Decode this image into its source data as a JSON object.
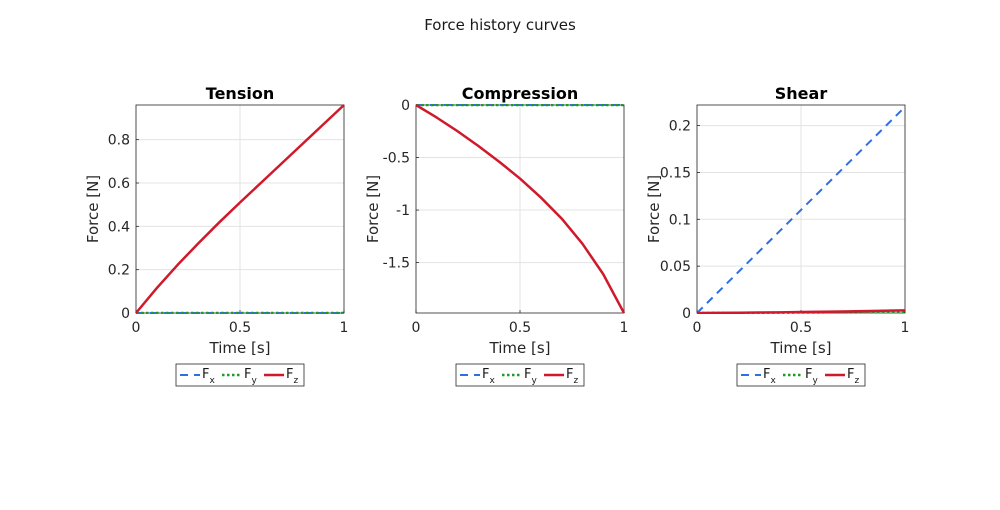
{
  "figure_title": "Force history curves",
  "legend_entries": [
    {
      "base": "F",
      "sub": "x"
    },
    {
      "base": "F",
      "sub": "y"
    },
    {
      "base": "F",
      "sub": "z"
    }
  ],
  "series_styles": {
    "Fx": {
      "color": "#2f6fe0",
      "dash": "8,6",
      "width": 2
    },
    "Fy": {
      "color": "#1f9a2a",
      "dash": "2.5,2.5",
      "width": 2.5
    },
    "Fz": {
      "color": "#d0192b",
      "dash": "",
      "width": 2.5
    }
  },
  "chart_data": [
    {
      "type": "line",
      "title": "Tension",
      "xlabel": "Time [s]",
      "ylabel": "Force [N]",
      "xlim": [
        0,
        1
      ],
      "ylim": [
        0,
        0.96
      ],
      "xticks": [
        0,
        0.5,
        1
      ],
      "xtick_labels": [
        "0",
        "0.5",
        "1"
      ],
      "yticks": [
        0,
        0.2,
        0.4,
        0.6,
        0.8
      ],
      "ytick_labels": [
        "0",
        "0.2",
        "0.4",
        "0.6",
        "0.8"
      ],
      "grid": true,
      "legend_placement": "bottom-outside",
      "x": [
        0,
        0.1,
        0.2,
        0.3,
        0.4,
        0.5,
        0.6,
        0.7,
        0.8,
        0.9,
        1.0
      ],
      "series": [
        {
          "key": "Fx",
          "values": [
            0,
            0,
            0,
            0,
            0,
            0,
            0,
            0,
            0,
            0,
            0
          ]
        },
        {
          "key": "Fy",
          "values": [
            0,
            0,
            0,
            0,
            0,
            0,
            0,
            0,
            0,
            0,
            0
          ]
        },
        {
          "key": "Fz",
          "values": [
            0,
            0.115,
            0.222,
            0.322,
            0.418,
            0.51,
            0.6,
            0.69,
            0.78,
            0.87,
            0.96
          ]
        }
      ]
    },
    {
      "type": "line",
      "title": "Compression",
      "xlabel": "Time [s]",
      "ylabel": "Force [N]",
      "xlim": [
        0,
        1
      ],
      "ylim": [
        -1.98,
        0
      ],
      "xticks": [
        0,
        0.5,
        1
      ],
      "xtick_labels": [
        "0",
        "0.5",
        "1"
      ],
      "yticks": [
        0,
        -0.5,
        -1,
        -1.5
      ],
      "ytick_labels": [
        "0",
        "-0.5",
        "-1",
        "-1.5"
      ],
      "grid": true,
      "legend_placement": "bottom-outside",
      "x": [
        0,
        0.1,
        0.2,
        0.3,
        0.4,
        0.5,
        0.6,
        0.7,
        0.8,
        0.9,
        1.0
      ],
      "series": [
        {
          "key": "Fx",
          "values": [
            0,
            0,
            0,
            0,
            0,
            0,
            0,
            0,
            0,
            0,
            0
          ]
        },
        {
          "key": "Fy",
          "values": [
            0,
            0,
            0,
            0,
            0,
            0,
            0,
            0,
            0,
            0,
            0
          ]
        },
        {
          "key": "Fz",
          "values": [
            0,
            -0.12,
            -0.25,
            -0.39,
            -0.54,
            -0.7,
            -0.88,
            -1.08,
            -1.32,
            -1.61,
            -1.98
          ]
        }
      ]
    },
    {
      "type": "line",
      "title": "Shear",
      "xlabel": "Time [s]",
      "ylabel": "Force [N]",
      "xlim": [
        0,
        1
      ],
      "ylim": [
        0,
        0.222
      ],
      "xticks": [
        0,
        0.5,
        1
      ],
      "xtick_labels": [
        "0",
        "0.5",
        "1"
      ],
      "yticks": [
        0,
        0.05,
        0.1,
        0.15,
        0.2
      ],
      "ytick_labels": [
        "0",
        "0.05",
        "0.1",
        "0.15",
        "0.2"
      ],
      "grid": true,
      "legend_placement": "bottom-outside",
      "x": [
        0,
        0.1,
        0.2,
        0.3,
        0.4,
        0.5,
        0.6,
        0.7,
        0.8,
        0.9,
        1.0
      ],
      "series": [
        {
          "key": "Fx",
          "values": [
            0,
            0.022,
            0.044,
            0.066,
            0.088,
            0.11,
            0.132,
            0.154,
            0.176,
            0.198,
            0.22
          ]
        },
        {
          "key": "Fy",
          "values": [
            0,
            0.0001,
            0.0002,
            0.0003,
            0.0004,
            0.0005,
            0.0006,
            0.0007,
            0.0008,
            0.0009,
            0.001
          ]
        },
        {
          "key": "Fz",
          "values": [
            0,
            0.0001,
            0.0003,
            0.0005,
            0.0007,
            0.001,
            0.0013,
            0.0016,
            0.002,
            0.0024,
            0.0028
          ]
        }
      ]
    }
  ]
}
